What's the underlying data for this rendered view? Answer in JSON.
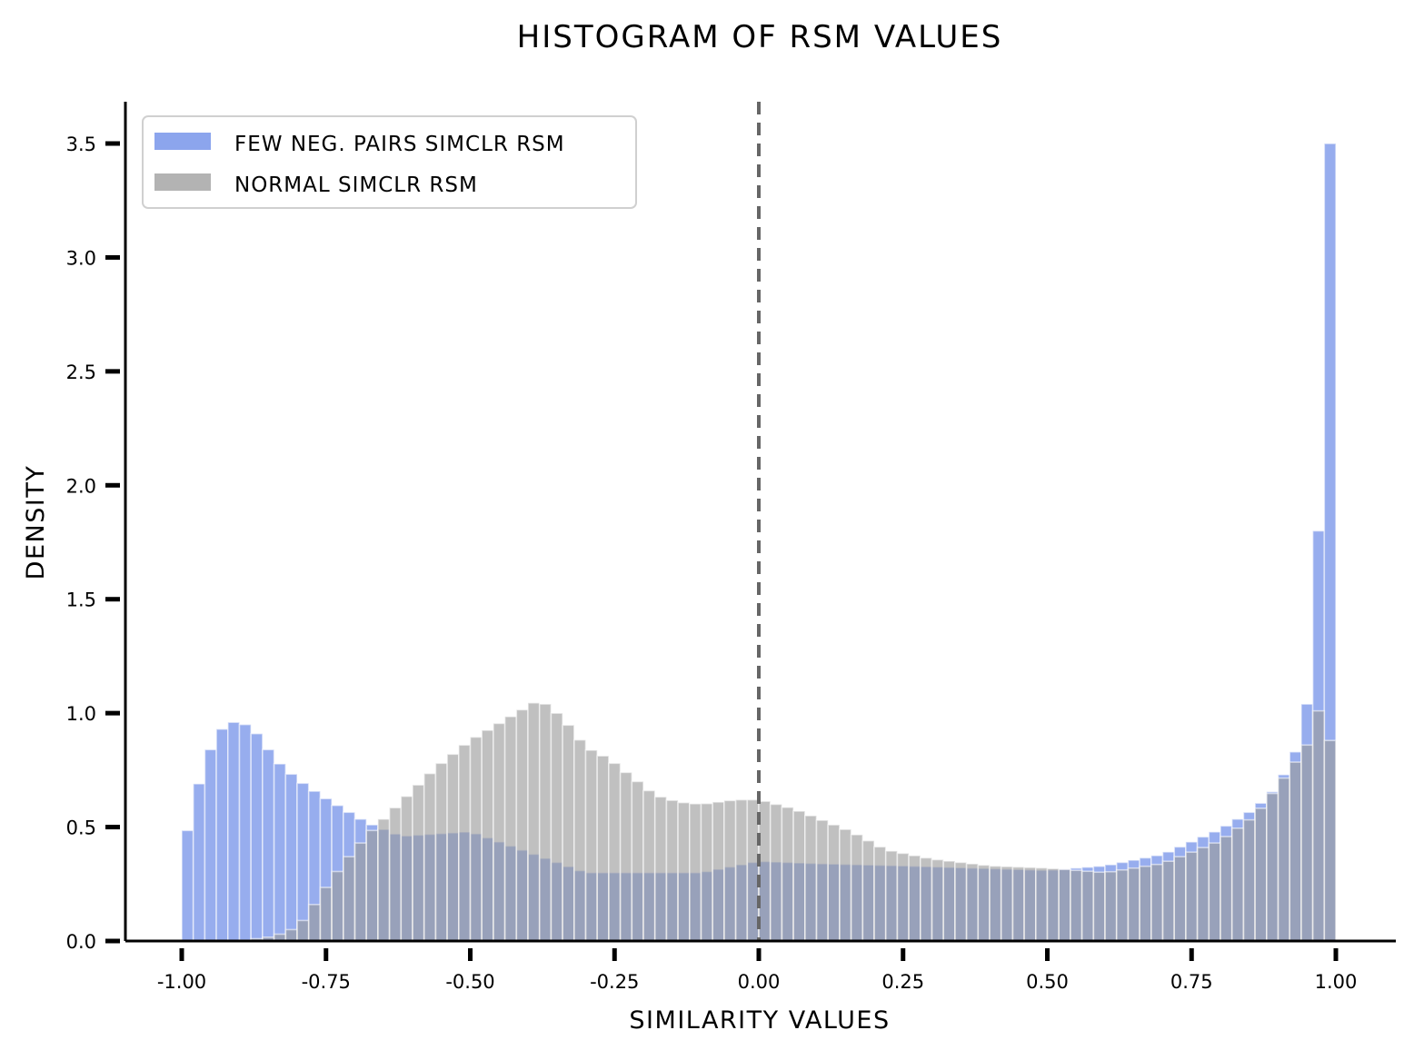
{
  "chart_data": {
    "type": "bar",
    "title": "HISTOGRAM OF RSM VALUES",
    "xlabel": "SIMILARITY VALUES",
    "ylabel": "DENSITY",
    "xlim": [
      -1.1,
      1.1
    ],
    "ylim": [
      0,
      3.7
    ],
    "xticks": [
      -1.0,
      -0.75,
      -0.5,
      -0.25,
      0.0,
      0.25,
      0.5,
      0.75,
      1.0
    ],
    "xtick_labels": [
      "-1.00",
      "-0.75",
      "-0.50",
      "-0.25",
      "0.00",
      "0.25",
      "0.50",
      "0.75",
      "1.00"
    ],
    "yticks": [
      0.0,
      0.5,
      1.0,
      1.5,
      2.0,
      2.5,
      3.0,
      3.5
    ],
    "ytick_labels": [
      "0.0",
      "0.5",
      "1.0",
      "1.5",
      "2.0",
      "2.5",
      "3.0",
      "3.5"
    ],
    "bin_width": 0.02,
    "grid": false,
    "legend_position": "top-left",
    "reference_line": {
      "x": 0.0,
      "style": "dashed",
      "color": "#666666"
    },
    "series": [
      {
        "name": "FEW NEG. PAIRS SIMCLR RSM",
        "color": "#6f8ee8",
        "profile": [
          [
            -1.0,
            0.37
          ],
          [
            -0.98,
            0.6
          ],
          [
            -0.96,
            0.78
          ],
          [
            -0.94,
            0.9
          ],
          [
            -0.92,
            0.96
          ],
          [
            -0.9,
            0.96
          ],
          [
            -0.88,
            0.94
          ],
          [
            -0.86,
            0.88
          ],
          [
            -0.84,
            0.8
          ],
          [
            -0.8,
            0.71
          ],
          [
            -0.76,
            0.64
          ],
          [
            -0.72,
            0.58
          ],
          [
            -0.68,
            0.52
          ],
          [
            -0.62,
            0.46
          ],
          [
            -0.5,
            0.48
          ],
          [
            -0.3,
            0.3
          ],
          [
            -0.1,
            0.3
          ],
          [
            0.0,
            0.35
          ],
          [
            0.1,
            0.34
          ],
          [
            0.25,
            0.33
          ],
          [
            0.5,
            0.31
          ],
          [
            0.6,
            0.33
          ],
          [
            0.7,
            0.38
          ],
          [
            0.8,
            0.49
          ],
          [
            0.86,
            0.58
          ],
          [
            0.9,
            0.68
          ],
          [
            0.92,
            0.78
          ],
          [
            0.94,
            0.88
          ],
          [
            0.96,
            1.2
          ],
          [
            0.97,
            1.8
          ],
          [
            0.99,
            3.5
          ]
        ]
      },
      {
        "name": "NORMAL SIMCLR RSM",
        "color": "#999999",
        "profile": [
          [
            -1.0,
            0.0
          ],
          [
            -0.9,
            0.0
          ],
          [
            -0.84,
            0.02
          ],
          [
            -0.8,
            0.06
          ],
          [
            -0.78,
            0.12
          ],
          [
            -0.76,
            0.2
          ],
          [
            -0.72,
            0.34
          ],
          [
            -0.68,
            0.46
          ],
          [
            -0.64,
            0.56
          ],
          [
            -0.6,
            0.66
          ],
          [
            -0.56,
            0.76
          ],
          [
            -0.5,
            0.88
          ],
          [
            -0.46,
            0.94
          ],
          [
            -0.42,
            1.0
          ],
          [
            -0.38,
            1.06
          ],
          [
            -0.34,
            0.98
          ],
          [
            -0.3,
            0.85
          ],
          [
            -0.26,
            0.8
          ],
          [
            -0.22,
            0.72
          ],
          [
            -0.18,
            0.64
          ],
          [
            -0.14,
            0.61
          ],
          [
            -0.1,
            0.6
          ],
          [
            -0.04,
            0.62
          ],
          [
            0.0,
            0.62
          ],
          [
            0.06,
            0.58
          ],
          [
            0.1,
            0.54
          ],
          [
            0.16,
            0.48
          ],
          [
            0.22,
            0.4
          ],
          [
            0.3,
            0.36
          ],
          [
            0.4,
            0.33
          ],
          [
            0.5,
            0.32
          ],
          [
            0.6,
            0.3
          ],
          [
            0.7,
            0.34
          ],
          [
            0.8,
            0.44
          ],
          [
            0.86,
            0.55
          ],
          [
            0.9,
            0.68
          ],
          [
            0.94,
            0.82
          ],
          [
            0.96,
            0.9
          ],
          [
            0.98,
            1.12
          ],
          [
            0.99,
            0.88
          ]
        ]
      }
    ]
  }
}
